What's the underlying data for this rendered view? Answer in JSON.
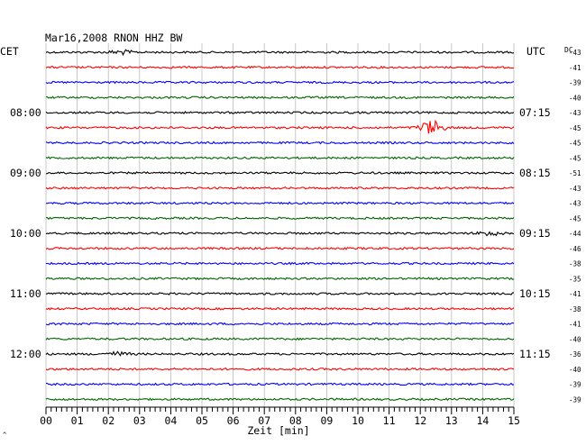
{
  "chart_data": {
    "type": "line",
    "title": "Mar16,2008   RNON HHZ BW",
    "left_header": "CET",
    "right_header": "UTC",
    "dc_header": "DC",
    "xlabel": "Zeit [min]",
    "x_ticks": [
      "00",
      "01",
      "02",
      "03",
      "04",
      "05",
      "06",
      "07",
      "08",
      "09",
      "10",
      "11",
      "12",
      "13",
      "14",
      "15"
    ],
    "xlim": [
      0,
      15
    ],
    "trace_colors": [
      "#000000",
      "#ff0000",
      "#0000ff",
      "#006400"
    ],
    "traces": [
      {
        "left": "",
        "right": "",
        "dc": "-43"
      },
      {
        "left": "",
        "right": "",
        "dc": "-41"
      },
      {
        "left": "",
        "right": "",
        "dc": "-39"
      },
      {
        "left": "",
        "right": "",
        "dc": "-40"
      },
      {
        "left": "08:00",
        "right": "07:15",
        "dc": "-43"
      },
      {
        "left": "",
        "right": "",
        "dc": "-45"
      },
      {
        "left": "",
        "right": "",
        "dc": "-45"
      },
      {
        "left": "",
        "right": "",
        "dc": "-45"
      },
      {
        "left": "09:00",
        "right": "08:15",
        "dc": "-51"
      },
      {
        "left": "",
        "right": "",
        "dc": "-43"
      },
      {
        "left": "",
        "right": "",
        "dc": "-43"
      },
      {
        "left": "",
        "right": "",
        "dc": "-45"
      },
      {
        "left": "10:00",
        "right": "09:15",
        "dc": "-44"
      },
      {
        "left": "",
        "right": "",
        "dc": "-46"
      },
      {
        "left": "",
        "right": "",
        "dc": "-38"
      },
      {
        "left": "",
        "right": "",
        "dc": "-35"
      },
      {
        "left": "11:00",
        "right": "10:15",
        "dc": "-41"
      },
      {
        "left": "",
        "right": "",
        "dc": "-38"
      },
      {
        "left": "",
        "right": "",
        "dc": "-41"
      },
      {
        "left": "",
        "right": "",
        "dc": "-40"
      },
      {
        "left": "12:00",
        "right": "11:15",
        "dc": "-36"
      },
      {
        "left": "",
        "right": "",
        "dc": "-40"
      },
      {
        "left": "",
        "right": "",
        "dc": "-39"
      },
      {
        "left": "",
        "right": "",
        "dc": "-39"
      }
    ],
    "events": [
      {
        "trace": 5,
        "minute": 12.35,
        "amplitude": 8
      },
      {
        "trace": 0,
        "minute": 2.4,
        "amplitude": 2.2
      },
      {
        "trace": 12,
        "minute": 14.2,
        "amplitude": 2.4
      },
      {
        "trace": 20,
        "minute": 2.3,
        "amplitude": 2
      }
    ],
    "grid": true
  }
}
